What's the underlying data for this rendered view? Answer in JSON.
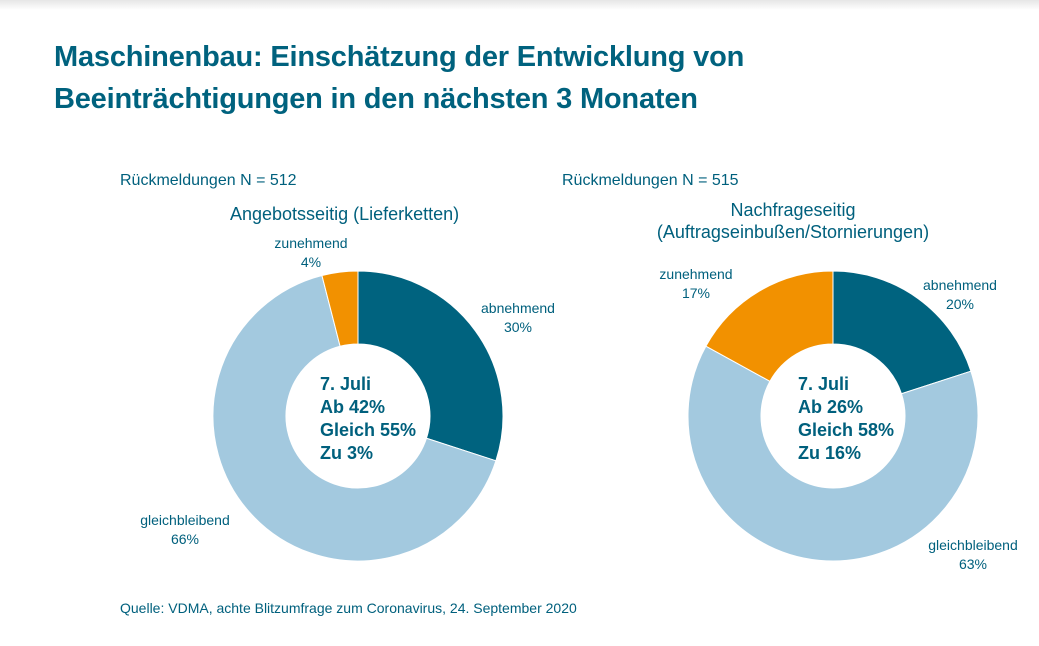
{
  "title_line1": "Maschinenbau: Einschätzung der Entwicklung von",
  "title_line2": "Beeinträchtigungen in den nächsten 3 Monaten",
  "source": "Quelle: VDMA, achte Blitzumfrage zum Coronavirus, 24. September 2020",
  "colors": {
    "abnehmend": "#00637f",
    "gleichbleibend": "#a3c9df",
    "zunehmend": "#f29100",
    "text": "#00607d"
  },
  "chart_data": [
    {
      "type": "pie",
      "variant": "donut",
      "responses": "Rückmeldungen N = 512",
      "title": "Angebotsseitig (Lieferketten)",
      "title_line2": "",
      "categories": [
        "abnehmend",
        "gleichbleibend",
        "zunehmend"
      ],
      "values": [
        30,
        66,
        4
      ],
      "value_labels": [
        "30%",
        "66%",
        "4%"
      ],
      "center_text": [
        "7. Juli",
        "Ab 42%",
        "Gleich 55%",
        "Zu 3%"
      ]
    },
    {
      "type": "pie",
      "variant": "donut",
      "responses": "Rückmeldungen N = 515",
      "title": "Nachfrageseitig",
      "title_line2": "(Auftragseinbußen/Stornierungen)",
      "categories": [
        "abnehmend",
        "gleichbleibend",
        "zunehmend"
      ],
      "values": [
        20,
        63,
        17
      ],
      "value_labels": [
        "20%",
        "63%",
        "17%"
      ],
      "center_text": [
        "7. Juli",
        "Ab 26%",
        "Gleich 58%",
        "Zu 16%"
      ]
    }
  ]
}
